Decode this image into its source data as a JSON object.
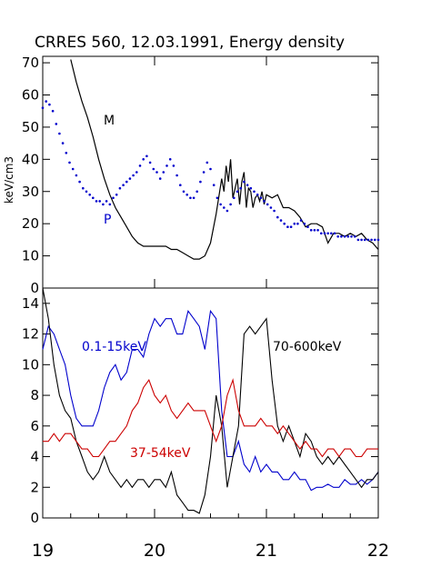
{
  "chart_data": [
    {
      "type": "line",
      "title": "CRRES 560, 12.03.1991,  Energy density",
      "ylabel": "keV/cm3",
      "ylim": [
        0,
        72
      ],
      "yticks": [
        0,
        10,
        20,
        30,
        40,
        50,
        60,
        70
      ],
      "xlim": [
        19,
        22
      ],
      "grid": false,
      "colors": {
        "M": "#000000",
        "P": "#0000cc"
      },
      "series": [
        {
          "name": "M",
          "style": "line",
          "x": [
            19.25,
            19.3,
            19.35,
            19.4,
            19.45,
            19.5,
            19.55,
            19.6,
            19.65,
            19.7,
            19.75,
            19.8,
            19.85,
            19.9,
            19.95,
            20.0,
            20.05,
            20.1,
            20.15,
            20.2,
            20.25,
            20.3,
            20.35,
            20.4,
            20.45,
            20.5,
            20.55,
            20.6,
            20.62,
            20.64,
            20.66,
            20.68,
            20.7,
            20.72,
            20.74,
            20.76,
            20.78,
            20.8,
            20.82,
            20.84,
            20.86,
            20.88,
            20.9,
            20.92,
            20.94,
            20.96,
            20.98,
            21.0,
            21.05,
            21.1,
            21.15,
            21.2,
            21.25,
            21.3,
            21.35,
            21.4,
            21.45,
            21.5,
            21.55,
            21.6,
            21.65,
            21.7,
            21.75,
            21.8,
            21.85,
            21.9,
            21.95,
            22.0
          ],
          "y": [
            71,
            64,
            58,
            53,
            47,
            40,
            34,
            29,
            25,
            22,
            19,
            16,
            14,
            13,
            13,
            13,
            13,
            13,
            12,
            12,
            11,
            10,
            9,
            9,
            10,
            14,
            23,
            34,
            30,
            38,
            33,
            40,
            28,
            31,
            34,
            26,
            33,
            36,
            25,
            31,
            30,
            25,
            28,
            29,
            27,
            30,
            26,
            29,
            28,
            29,
            25,
            25,
            24,
            22,
            19,
            20,
            20,
            19,
            14,
            17,
            17,
            16,
            17,
            16,
            17,
            15,
            14,
            12
          ]
        },
        {
          "name": "P",
          "style": "dots",
          "x": [
            19.0,
            19.03,
            19.06,
            19.09,
            19.12,
            19.15,
            19.18,
            19.21,
            19.24,
            19.27,
            19.3,
            19.33,
            19.36,
            19.39,
            19.42,
            19.45,
            19.48,
            19.51,
            19.54,
            19.57,
            19.6,
            19.63,
            19.66,
            19.69,
            19.72,
            19.75,
            19.78,
            19.81,
            19.84,
            19.87,
            19.9,
            19.93,
            19.96,
            19.99,
            20.02,
            20.05,
            20.08,
            20.11,
            20.14,
            20.17,
            20.2,
            20.23,
            20.26,
            20.29,
            20.32,
            20.35,
            20.38,
            20.41,
            20.44,
            20.47,
            20.5,
            20.53,
            20.56,
            20.59,
            20.62,
            20.65,
            20.68,
            20.71,
            20.74,
            20.77,
            20.8,
            20.83,
            20.86,
            20.89,
            20.92,
            20.95,
            20.98,
            21.01,
            21.04,
            21.07,
            21.1,
            21.13,
            21.16,
            21.19,
            21.22,
            21.25,
            21.28,
            21.31,
            21.34,
            21.37,
            21.4,
            21.43,
            21.46,
            21.49,
            21.52,
            21.55,
            21.58,
            21.61,
            21.64,
            21.67,
            21.7,
            21.73,
            21.76,
            21.79,
            21.82,
            21.85,
            21.88,
            21.91,
            21.94,
            21.97,
            22.0
          ],
          "y": [
            56,
            58,
            57,
            55,
            51,
            48,
            45,
            42,
            39,
            37,
            35,
            33,
            31,
            30,
            29,
            28,
            27,
            27,
            26,
            27,
            26,
            28,
            29,
            31,
            32,
            33,
            34,
            35,
            36,
            38,
            40,
            41,
            39,
            37,
            36,
            34,
            36,
            38,
            40,
            38,
            35,
            32,
            30,
            29,
            28,
            28,
            30,
            33,
            36,
            39,
            37,
            32,
            28,
            26,
            25,
            24,
            26,
            28,
            30,
            31,
            33,
            32,
            31,
            30,
            29,
            28,
            27,
            26,
            25,
            24,
            22,
            21,
            20,
            19,
            19,
            20,
            20,
            21,
            20,
            19,
            18,
            18,
            18,
            17,
            17,
            17,
            17,
            17,
            16,
            16,
            16,
            16,
            16,
            16,
            15,
            15,
            15,
            15,
            15,
            15,
            15
          ]
        }
      ],
      "annotations": [
        "M",
        "P"
      ]
    },
    {
      "type": "line",
      "ylim": [
        0,
        15
      ],
      "yticks": [
        0,
        2,
        4,
        6,
        8,
        10,
        12,
        14
      ],
      "xlim": [
        19,
        22
      ],
      "xticks": [
        19,
        20,
        21,
        22
      ],
      "xtick_labels": [
        "19",
        "20",
        "21",
        "22"
      ],
      "grid": false,
      "series": [
        {
          "name": "0.1-15keV",
          "color": "#0000cc",
          "x": [
            19.0,
            19.05,
            19.1,
            19.15,
            19.2,
            19.25,
            19.3,
            19.35,
            19.4,
            19.45,
            19.5,
            19.55,
            19.6,
            19.65,
            19.7,
            19.75,
            19.8,
            19.85,
            19.9,
            19.95,
            20.0,
            20.05,
            20.1,
            20.15,
            20.2,
            20.25,
            20.3,
            20.35,
            20.4,
            20.45,
            20.5,
            20.55,
            20.6,
            20.65,
            20.7,
            20.75,
            20.8,
            20.85,
            20.9,
            20.95,
            21.0,
            21.05,
            21.1,
            21.15,
            21.2,
            21.25,
            21.3,
            21.35,
            21.4,
            21.45,
            21.5,
            21.55,
            21.6,
            21.65,
            21.7,
            21.75,
            21.8,
            21.85,
            21.9,
            21.95,
            22.0
          ],
          "y": [
            11,
            12.5,
            12,
            11,
            10,
            8,
            6.5,
            6,
            6,
            6,
            7,
            8.5,
            9.5,
            10,
            9,
            9.5,
            11,
            11,
            10.5,
            12,
            13,
            12.5,
            13,
            13,
            12,
            12,
            13.5,
            13,
            12.5,
            11,
            13.5,
            13,
            7,
            4,
            4,
            5,
            3.5,
            3,
            4,
            3,
            3.5,
            3,
            3,
            2.5,
            2.5,
            3,
            2.5,
            2.5,
            1.8,
            2,
            2,
            2.2,
            2,
            2,
            2.5,
            2.2,
            2.2,
            2.5,
            2.2,
            2.5,
            3
          ]
        },
        {
          "name": "70-600keV",
          "color": "#000000",
          "x": [
            19.0,
            19.05,
            19.1,
            19.15,
            19.2,
            19.25,
            19.3,
            19.35,
            19.4,
            19.45,
            19.5,
            19.55,
            19.6,
            19.65,
            19.7,
            19.75,
            19.8,
            19.85,
            19.9,
            19.95,
            20.0,
            20.05,
            20.1,
            20.15,
            20.2,
            20.25,
            20.3,
            20.35,
            20.4,
            20.45,
            20.5,
            20.55,
            20.6,
            20.65,
            20.7,
            20.75,
            20.8,
            20.85,
            20.9,
            20.95,
            21.0,
            21.05,
            21.1,
            21.15,
            21.2,
            21.25,
            21.3,
            21.35,
            21.4,
            21.45,
            21.5,
            21.55,
            21.6,
            21.65,
            21.7,
            21.75,
            21.8,
            21.85,
            21.9,
            21.95,
            22.0
          ],
          "y": [
            15,
            13,
            10,
            8,
            7,
            6.5,
            5,
            4,
            3,
            2.5,
            3,
            4,
            3,
            2.5,
            2,
            2.5,
            2,
            2.5,
            2.5,
            2,
            2.5,
            2.5,
            2,
            3,
            1.5,
            1,
            0.5,
            0.5,
            0.3,
            1.5,
            4,
            8,
            6,
            2,
            4,
            6,
            12,
            12.5,
            12,
            12.5,
            13,
            9,
            6,
            5,
            6,
            5,
            4,
            5.5,
            5,
            4,
            3.5,
            4,
            3.5,
            4,
            3.5,
            3,
            2.5,
            2,
            2.5,
            2.5,
            3
          ]
        },
        {
          "name": "37-54keV",
          "color": "#cc0000",
          "x": [
            19.0,
            19.05,
            19.1,
            19.15,
            19.2,
            19.25,
            19.3,
            19.35,
            19.4,
            19.45,
            19.5,
            19.55,
            19.6,
            19.65,
            19.7,
            19.75,
            19.8,
            19.85,
            19.9,
            19.95,
            20.0,
            20.05,
            20.1,
            20.15,
            20.2,
            20.25,
            20.3,
            20.35,
            20.4,
            20.45,
            20.5,
            20.55,
            20.6,
            20.65,
            20.7,
            20.75,
            20.8,
            20.85,
            20.9,
            20.95,
            21.0,
            21.05,
            21.1,
            21.15,
            21.2,
            21.25,
            21.3,
            21.35,
            21.4,
            21.45,
            21.5,
            21.55,
            21.6,
            21.65,
            21.7,
            21.75,
            21.8,
            21.85,
            21.9,
            21.95,
            22.0
          ],
          "y": [
            5,
            5,
            5.5,
            5,
            5.5,
            5.5,
            5,
            4.5,
            4.5,
            4,
            4,
            4.5,
            5,
            5,
            5.5,
            6,
            7,
            7.5,
            8.5,
            9,
            8,
            7.5,
            8,
            7,
            6.5,
            7,
            7.5,
            7,
            7,
            7,
            6,
            5,
            6,
            8,
            9,
            7,
            6,
            6,
            6,
            6.5,
            6,
            6,
            5.5,
            6,
            5.5,
            5,
            4.5,
            5,
            4.5,
            4.5,
            4,
            4.5,
            4.5,
            4,
            4.5,
            4.5,
            4,
            4,
            4.5,
            4.5,
            4.5
          ]
        }
      ],
      "annotations": [
        "0.1-15keV",
        "70-600keV",
        "37-54keV"
      ]
    }
  ]
}
